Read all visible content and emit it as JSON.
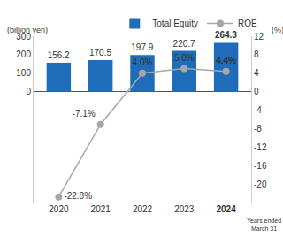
{
  "chart_data": {
    "type": "bar",
    "y_label": "(billion yen)",
    "y2_label": "(%)",
    "annotation": "Years ended March 31",
    "categories": [
      "2020",
      "2021",
      "2022",
      "2023",
      "2024"
    ],
    "series": [
      {
        "name": "Total Equity",
        "type": "bar",
        "color": "#1f6cb8",
        "values": [
          156.2,
          170.5,
          197.9,
          220.7,
          264.3
        ]
      },
      {
        "name": "ROE",
        "type": "line",
        "axis": "y2",
        "color": "#a6a6a6",
        "marker": "circle",
        "values": [
          -22.8,
          -7.1,
          4.0,
          5.0,
          4.4
        ],
        "value_labels": [
          "-22.8%",
          "-7.1%",
          "4.0%",
          "5.0%",
          "4.4%"
        ]
      }
    ],
    "ylim": [
      -600,
      300
    ],
    "yticks": [
      0,
      100,
      200,
      300
    ],
    "y2lim": [
      -24,
      12
    ],
    "y2ticks": [
      12,
      8,
      4,
      0,
      -4,
      -8,
      -12,
      -16,
      -20
    ],
    "data_labels": true,
    "grid": false,
    "legend": "top"
  }
}
